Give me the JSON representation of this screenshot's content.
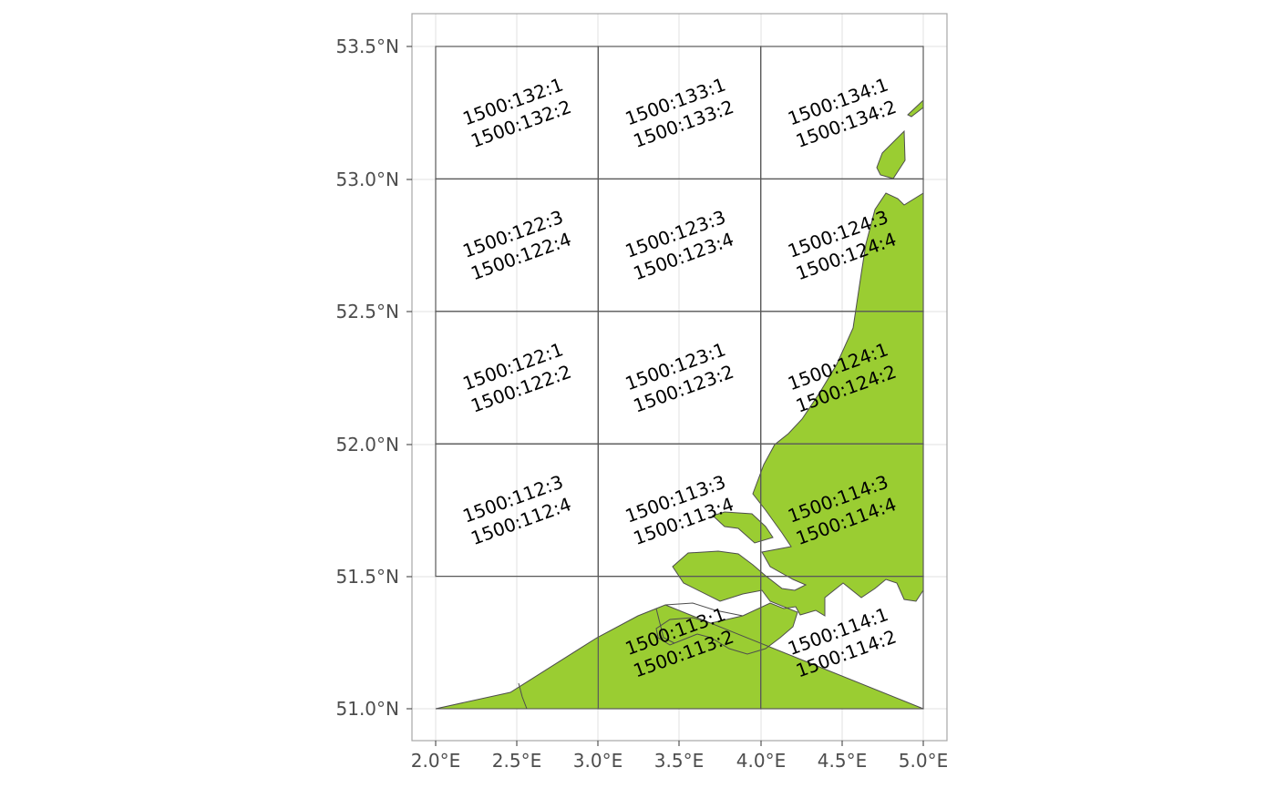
{
  "colors": {
    "land": "#9acd32",
    "grid": "#e0e0e0",
    "rect_stroke": "#595959",
    "panel_border": "#a6a6a6",
    "tick_text": "#4d4d4d",
    "label_text": "#000000"
  },
  "axes": {
    "x_ticks": [
      "2.0°E",
      "2.5°E",
      "3.0°E",
      "3.5°E",
      "4.0°E",
      "4.5°E",
      "5.0°E"
    ],
    "y_ticks": [
      "53.5°N",
      "53.0°N",
      "52.5°N",
      "52.0°N",
      "51.5°N",
      "51.0°N"
    ]
  },
  "rectangles": [
    {
      "name": "132",
      "lon": [
        2.0,
        3.0
      ],
      "lat": [
        53.0,
        53.5
      ],
      "labels": [
        "1500:132:1",
        "1500:132:2"
      ]
    },
    {
      "name": "133",
      "lon": [
        3.0,
        4.0
      ],
      "lat": [
        53.0,
        53.5
      ],
      "labels": [
        "1500:133:1",
        "1500:133:2"
      ]
    },
    {
      "name": "134",
      "lon": [
        4.0,
        5.0
      ],
      "lat": [
        53.0,
        53.5
      ],
      "labels": [
        "1500:134:1",
        "1500:134:2"
      ]
    },
    {
      "name": "122-upper",
      "lon": [
        2.0,
        3.0
      ],
      "lat": [
        52.5,
        53.0
      ],
      "labels": [
        "1500:122:3",
        "1500:122:4"
      ]
    },
    {
      "name": "123-upper",
      "lon": [
        3.0,
        4.0
      ],
      "lat": [
        52.5,
        53.0
      ],
      "labels": [
        "1500:123:3",
        "1500:123:4"
      ]
    },
    {
      "name": "124-upper",
      "lon": [
        4.0,
        5.0
      ],
      "lat": [
        52.5,
        53.0
      ],
      "labels": [
        "1500:124:3",
        "1500:124:4"
      ]
    },
    {
      "name": "122-lower",
      "lon": [
        2.0,
        3.0
      ],
      "lat": [
        52.0,
        52.5
      ],
      "labels": [
        "1500:122:1",
        "1500:122:2"
      ]
    },
    {
      "name": "123-lower",
      "lon": [
        3.0,
        4.0
      ],
      "lat": [
        52.0,
        52.5
      ],
      "labels": [
        "1500:123:1",
        "1500:123:2"
      ]
    },
    {
      "name": "124-lower",
      "lon": [
        4.0,
        5.0
      ],
      "lat": [
        52.0,
        52.5
      ],
      "labels": [
        "1500:124:1",
        "1500:124:2"
      ]
    },
    {
      "name": "112-upper",
      "lon": [
        2.0,
        3.0
      ],
      "lat": [
        51.5,
        52.0
      ],
      "labels": [
        "1500:112:3",
        "1500:112:4"
      ]
    },
    {
      "name": "113-upper",
      "lon": [
        3.0,
        4.0
      ],
      "lat": [
        51.5,
        52.0
      ],
      "labels": [
        "1500:113:3",
        "1500:113:4"
      ]
    },
    {
      "name": "114-upper",
      "lon": [
        4.0,
        5.0
      ],
      "lat": [
        51.5,
        52.0
      ],
      "labels": [
        "1500:114:3",
        "1500:114:4"
      ]
    },
    {
      "name": "113-lower",
      "lon": [
        3.0,
        4.0
      ],
      "lat": [
        51.0,
        51.5
      ],
      "labels": [
        "1500:113:1",
        "1500:113:2"
      ]
    },
    {
      "name": "114-lower",
      "lon": [
        4.0,
        5.0
      ],
      "lat": [
        51.0,
        51.5
      ],
      "labels": [
        "1500:114:1",
        "1500:114:2"
      ]
    }
  ]
}
